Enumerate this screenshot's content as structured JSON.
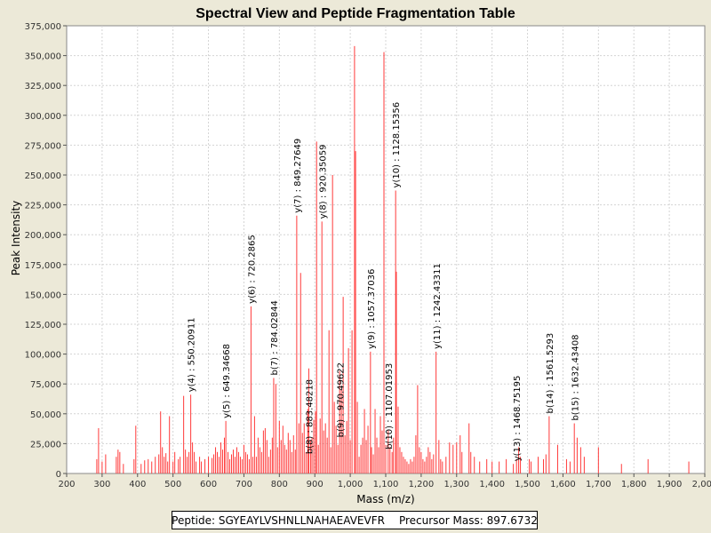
{
  "colors": {
    "background": "#ece9d8",
    "plot": "#ffffff",
    "peak": "#ff3a3a",
    "grid": "#d4d4d4"
  },
  "info": {
    "peptide": "Peptide: SGYEAYLVSHNLLNAHAEAVEVFR",
    "precursor": "Precursor Mass: 897.6732"
  },
  "chart_data": {
    "type": "bar",
    "title": "Spectral View and Peptide Fragmentation Table",
    "xlabel": "Mass (m/z)",
    "ylabel": "Peak Intensity",
    "xlim": [
      200,
      2000
    ],
    "ylim": [
      0,
      375000
    ],
    "xticks": [
      {
        "v": 200,
        "label": "200"
      },
      {
        "v": 300,
        "label": "300"
      },
      {
        "v": 400,
        "label": "400"
      },
      {
        "v": 500,
        "label": "500"
      },
      {
        "v": 600,
        "label": "600"
      },
      {
        "v": 700,
        "label": "700"
      },
      {
        "v": 800,
        "label": "800"
      },
      {
        "v": 900,
        "label": "900"
      },
      {
        "v": 1000,
        "label": "1,000"
      },
      {
        "v": 1100,
        "label": "1,100"
      },
      {
        "v": 1200,
        "label": "1,200"
      },
      {
        "v": 1300,
        "label": "1,300"
      },
      {
        "v": 1400,
        "label": "1,400"
      },
      {
        "v": 1500,
        "label": "1,500"
      },
      {
        "v": 1600,
        "label": "1,600"
      },
      {
        "v": 1700,
        "label": "1,700"
      },
      {
        "v": 1800,
        "label": "1,800"
      },
      {
        "v": 1900,
        "label": "1,900"
      },
      {
        "v": 2000,
        "label": "2,000"
      }
    ],
    "yticks": [
      {
        "v": 0,
        "label": "0"
      },
      {
        "v": 25000,
        "label": "25,000"
      },
      {
        "v": 50000,
        "label": "50,000"
      },
      {
        "v": 75000,
        "label": "75,000"
      },
      {
        "v": 100000,
        "label": "100,000"
      },
      {
        "v": 125000,
        "label": "125,000"
      },
      {
        "v": 150000,
        "label": "150,000"
      },
      {
        "v": 175000,
        "label": "175,000"
      },
      {
        "v": 200000,
        "label": "200,000"
      },
      {
        "v": 225000,
        "label": "225,000"
      },
      {
        "v": 250000,
        "label": "250,000"
      },
      {
        "v": 275000,
        "label": "275,000"
      },
      {
        "v": 300000,
        "label": "300,000"
      },
      {
        "v": 325000,
        "label": "325,000"
      },
      {
        "v": 350000,
        "label": "350,000"
      },
      {
        "v": 375000,
        "label": "375,000"
      }
    ],
    "peaks": [
      [
        285,
        12000
      ],
      [
        290,
        38000
      ],
      [
        300,
        10000
      ],
      [
        310,
        16000
      ],
      [
        340,
        14000
      ],
      [
        345,
        20000
      ],
      [
        350,
        18000
      ],
      [
        360,
        8000
      ],
      [
        390,
        12000
      ],
      [
        395,
        40000
      ],
      [
        410,
        8000
      ],
      [
        420,
        11000
      ],
      [
        430,
        12000
      ],
      [
        440,
        10000
      ],
      [
        450,
        14000
      ],
      [
        460,
        16000
      ],
      [
        465,
        52000
      ],
      [
        470,
        22000
      ],
      [
        475,
        14000
      ],
      [
        480,
        17000
      ],
      [
        485,
        10000
      ],
      [
        490,
        48000
      ],
      [
        500,
        10000
      ],
      [
        505,
        18000
      ],
      [
        515,
        12000
      ],
      [
        520,
        14000
      ],
      [
        530,
        65000
      ],
      [
        535,
        20000
      ],
      [
        540,
        14000
      ],
      [
        545,
        18000
      ],
      [
        550,
        66000
      ],
      [
        555,
        26000
      ],
      [
        560,
        18000
      ],
      [
        565,
        10000
      ],
      [
        575,
        14000
      ],
      [
        580,
        10000
      ],
      [
        590,
        12000
      ],
      [
        600,
        14000
      ],
      [
        610,
        13000
      ],
      [
        615,
        16000
      ],
      [
        620,
        22000
      ],
      [
        625,
        18000
      ],
      [
        630,
        14000
      ],
      [
        635,
        26000
      ],
      [
        640,
        20000
      ],
      [
        645,
        30000
      ],
      [
        649,
        44000
      ],
      [
        655,
        18000
      ],
      [
        660,
        12000
      ],
      [
        665,
        16000
      ],
      [
        670,
        20000
      ],
      [
        675,
        14000
      ],
      [
        680,
        22000
      ],
      [
        685,
        18000
      ],
      [
        690,
        14000
      ],
      [
        695,
        12000
      ],
      [
        700,
        24000
      ],
      [
        705,
        18000
      ],
      [
        710,
        16000
      ],
      [
        715,
        12000
      ],
      [
        720,
        140000
      ],
      [
        725,
        14000
      ],
      [
        730,
        48000
      ],
      [
        735,
        14000
      ],
      [
        740,
        30000
      ],
      [
        745,
        22000
      ],
      [
        750,
        18000
      ],
      [
        755,
        36000
      ],
      [
        760,
        38000
      ],
      [
        765,
        28000
      ],
      [
        770,
        14000
      ],
      [
        775,
        20000
      ],
      [
        780,
        30000
      ],
      [
        784,
        80000
      ],
      [
        790,
        75000
      ],
      [
        795,
        22000
      ],
      [
        800,
        44000
      ],
      [
        805,
        28000
      ],
      [
        810,
        40000
      ],
      [
        815,
        24000
      ],
      [
        820,
        20000
      ],
      [
        825,
        34000
      ],
      [
        830,
        28000
      ],
      [
        835,
        18000
      ],
      [
        840,
        32000
      ],
      [
        845,
        20000
      ],
      [
        849,
        216000
      ],
      [
        855,
        42000
      ],
      [
        860,
        168000
      ],
      [
        865,
        34000
      ],
      [
        870,
        42000
      ],
      [
        875,
        18000
      ],
      [
        880,
        54000
      ],
      [
        883,
        88000
      ],
      [
        888,
        28000
      ],
      [
        892,
        30000
      ],
      [
        897,
        45000
      ],
      [
        902,
        52000
      ],
      [
        905,
        278000
      ],
      [
        910,
        24000
      ],
      [
        915,
        46000
      ],
      [
        920,
        211000
      ],
      [
        925,
        36000
      ],
      [
        930,
        42000
      ],
      [
        935,
        30000
      ],
      [
        940,
        120000
      ],
      [
        945,
        22000
      ],
      [
        950,
        250000
      ],
      [
        955,
        60000
      ],
      [
        960,
        40000
      ],
      [
        965,
        24000
      ],
      [
        970,
        86000
      ],
      [
        975,
        70000
      ],
      [
        980,
        148000
      ],
      [
        985,
        32000
      ],
      [
        990,
        44000
      ],
      [
        995,
        105000
      ],
      [
        1000,
        28000
      ],
      [
        1005,
        120000
      ],
      [
        1012,
        358000
      ],
      [
        1015,
        270000
      ],
      [
        1020,
        60000
      ],
      [
        1025,
        14000
      ],
      [
        1030,
        24000
      ],
      [
        1035,
        30000
      ],
      [
        1040,
        54000
      ],
      [
        1045,
        28000
      ],
      [
        1050,
        40000
      ],
      [
        1057,
        102000
      ],
      [
        1060,
        22000
      ],
      [
        1065,
        16000
      ],
      [
        1070,
        54000
      ],
      [
        1075,
        30000
      ],
      [
        1080,
        22000
      ],
      [
        1085,
        48000
      ],
      [
        1090,
        36000
      ],
      [
        1095,
        353000
      ],
      [
        1100,
        24000
      ],
      [
        1107,
        36000
      ],
      [
        1112,
        22000
      ],
      [
        1118,
        18000
      ],
      [
        1122,
        30000
      ],
      [
        1128,
        237000
      ],
      [
        1130,
        169000
      ],
      [
        1135,
        56000
      ],
      [
        1140,
        22000
      ],
      [
        1145,
        18000
      ],
      [
        1150,
        14000
      ],
      [
        1155,
        12000
      ],
      [
        1160,
        10000
      ],
      [
        1165,
        8000
      ],
      [
        1170,
        12000
      ],
      [
        1175,
        10000
      ],
      [
        1180,
        14000
      ],
      [
        1185,
        32000
      ],
      [
        1190,
        74000
      ],
      [
        1195,
        22000
      ],
      [
        1200,
        18000
      ],
      [
        1205,
        12000
      ],
      [
        1210,
        10000
      ],
      [
        1215,
        14000
      ],
      [
        1220,
        22000
      ],
      [
        1225,
        18000
      ],
      [
        1230,
        12000
      ],
      [
        1235,
        16000
      ],
      [
        1242,
        102000
      ],
      [
        1250,
        28000
      ],
      [
        1255,
        12000
      ],
      [
        1260,
        10000
      ],
      [
        1270,
        14000
      ],
      [
        1280,
        26000
      ],
      [
        1290,
        24000
      ],
      [
        1300,
        26000
      ],
      [
        1310,
        32000
      ],
      [
        1315,
        18000
      ],
      [
        1335,
        42000
      ],
      [
        1340,
        18000
      ],
      [
        1350,
        14000
      ],
      [
        1365,
        10000
      ],
      [
        1385,
        12000
      ],
      [
        1400,
        10000
      ],
      [
        1420,
        10000
      ],
      [
        1440,
        12000
      ],
      [
        1460,
        8000
      ],
      [
        1469,
        12000
      ],
      [
        1475,
        22000
      ],
      [
        1480,
        14000
      ],
      [
        1505,
        12000
      ],
      [
        1510,
        10000
      ],
      [
        1530,
        14000
      ],
      [
        1545,
        12000
      ],
      [
        1552,
        16000
      ],
      [
        1561,
        48000
      ],
      [
        1585,
        24000
      ],
      [
        1610,
        12000
      ],
      [
        1620,
        10000
      ],
      [
        1632,
        42000
      ],
      [
        1640,
        30000
      ],
      [
        1650,
        22000
      ],
      [
        1660,
        14000
      ],
      [
        1700,
        22000
      ],
      [
        1765,
        8000
      ],
      [
        1840,
        12000
      ],
      [
        1955,
        10000
      ]
    ],
    "annotations": [
      {
        "x": 550.20911,
        "y": 66000,
        "label": "y(4) : 550.20911"
      },
      {
        "x": 649.34668,
        "y": 44000,
        "label": "y(5) : 649.34668"
      },
      {
        "x": 720.2865,
        "y": 140000,
        "label": "y(6) : 720.2865"
      },
      {
        "x": 784.02844,
        "y": 80000,
        "label": "b(7) : 784.02844"
      },
      {
        "x": 849.27649,
        "y": 216000,
        "label": "y(7) : 849.27649"
      },
      {
        "x": 883.48218,
        "y": 14000,
        "label": "b(8) : 883.48218"
      },
      {
        "x": 920.35059,
        "y": 211000,
        "label": "y(8) : 920.35059"
      },
      {
        "x": 970.49622,
        "y": 28000,
        "label": "b(9) : 970.49622"
      },
      {
        "x": 1057.37036,
        "y": 102000,
        "label": "y(9) : 1057.37036"
      },
      {
        "x": 1107.01953,
        "y": 18000,
        "label": "b(10) : 1107.01953"
      },
      {
        "x": 1128.15356,
        "y": 237000,
        "label": "y(10) : 1128.15356"
      },
      {
        "x": 1242.43311,
        "y": 102000,
        "label": "y(11) : 1242.43311"
      },
      {
        "x": 1468.75195,
        "y": 8000,
        "label": "y(13) : 1468.75195"
      },
      {
        "x": 1561.5293,
        "y": 48000,
        "label": "b(14) : 1561.5293"
      },
      {
        "x": 1632.43408,
        "y": 42000,
        "label": "b(15) : 1632.43408"
      }
    ]
  }
}
